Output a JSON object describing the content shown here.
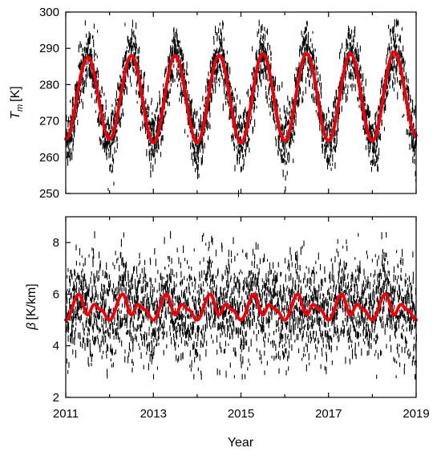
{
  "chart_data": [
    {
      "type": "line",
      "panel": "top",
      "ylabel_symbol": "T",
      "ylabel_subscript": "m",
      "ylabel_unit": "[K]",
      "xlim": [
        2011,
        2019
      ],
      "ylim": [
        250,
        300
      ],
      "yticks": [
        "250",
        "260",
        "270",
        "280",
        "290",
        "300"
      ],
      "grid": false,
      "series": [
        {
          "role": "daily observations",
          "style": "scatter",
          "color": "#000000",
          "seasonal_mean_K": 276.5,
          "seasonal_amplitude_K": 11.5,
          "noise_spread_K": 9,
          "observed_min_K": 250,
          "observed_max_K": 297
        },
        {
          "role": "fitted seasonal model",
          "style": "line",
          "color": "#e8000b",
          "x": [
            2011.0,
            2011.5,
            2012.0,
            2012.5,
            2013.0,
            2013.5,
            2014.0,
            2014.5,
            2015.0,
            2015.5,
            2016.0,
            2016.5,
            2017.0,
            2017.5,
            2018.0,
            2018.5,
            2019.0
          ],
          "y": [
            265,
            287.5,
            265,
            288,
            264,
            288,
            264,
            288,
            264,
            288.5,
            264.5,
            288.5,
            264.5,
            288.5,
            264.5,
            289,
            266
          ]
        }
      ]
    },
    {
      "type": "line",
      "panel": "bottom",
      "ylabel_symbol": "β",
      "ylabel_unit": "[K/km]",
      "xlabel": "Year",
      "xlim": [
        2011,
        2019
      ],
      "ylim": [
        2,
        9
      ],
      "yticks": [
        "2",
        "4",
        "6",
        "8"
      ],
      "xticks": [
        "2011",
        "2013",
        "2015",
        "2017",
        "2019"
      ],
      "grid": false,
      "series": [
        {
          "role": "daily observations",
          "style": "scatter",
          "color": "#000000",
          "observed_mean_K_per_km": 5.3,
          "observed_min_K_per_km": 2.8,
          "observed_max_K_per_km": 8.3
        },
        {
          "role": "fitted seasonal model",
          "style": "line",
          "color": "#e8000b",
          "x": [
            2011.0,
            2011.3,
            2011.5,
            2011.65,
            2011.8,
            2012.0,
            2012.3,
            2012.5,
            2012.65,
            2012.8,
            2013.0,
            2013.3,
            2013.5,
            2013.65,
            2013.8,
            2014.0,
            2014.3,
            2014.5,
            2014.65,
            2014.8,
            2015.0,
            2015.3,
            2015.5,
            2015.65,
            2015.8,
            2016.0,
            2016.3,
            2016.5,
            2016.65,
            2016.8,
            2017.0,
            2017.3,
            2017.5,
            2017.65,
            2017.8,
            2018.0,
            2018.3,
            2018.5,
            2018.65,
            2018.8,
            2019.0
          ],
          "y": [
            5.0,
            6.0,
            5.2,
            5.6,
            5.4,
            5.0,
            6.0,
            5.2,
            5.6,
            5.4,
            5.0,
            6.0,
            5.2,
            5.6,
            5.4,
            5.0,
            6.0,
            5.2,
            5.6,
            5.4,
            5.0,
            6.0,
            5.2,
            5.6,
            5.4,
            5.0,
            6.0,
            5.2,
            5.6,
            5.4,
            5.0,
            6.0,
            5.2,
            5.6,
            5.4,
            5.0,
            6.0,
            5.2,
            5.6,
            5.4,
            5.0
          ]
        }
      ]
    }
  ]
}
